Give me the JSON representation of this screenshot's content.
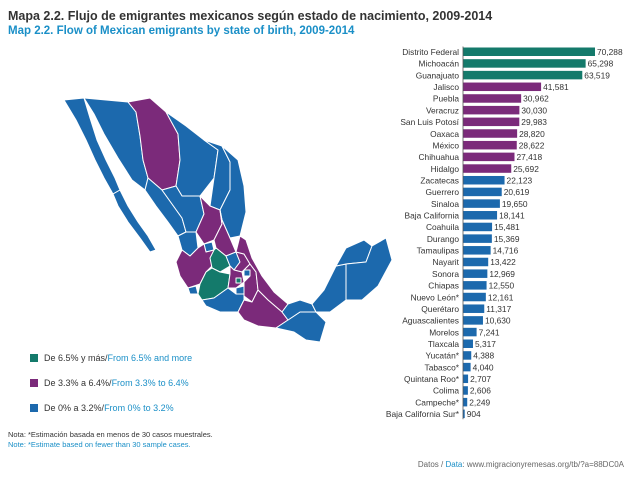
{
  "title_es": "Mapa 2.2. Flujo de emigrantes mexicanos  según  estado de nacimiento, 2009-2014",
  "title_en": "Map 2.2. Flow of Mexican emigrants by state of birth, 2009-2014",
  "legend": [
    {
      "label_es": "De 6.5% y más",
      "sep": " / ",
      "label_en": "From 6.5% and more",
      "color": "#147a6b"
    },
    {
      "label_es": "De 3.3% a 6.4%",
      "sep": " / ",
      "label_en": "From 3.3% to 6.4%",
      "color": "#7b2a7a"
    },
    {
      "label_es": "De 0% a 3.2%",
      "sep": " / ",
      "label_en": "From 0% to 3.2%",
      "color": "#1c69ad"
    }
  ],
  "note_es": "Nota: *Estimación basada en menos de 30 casos muestrales.",
  "note_en": "Note: *Estimate based on fewer than 30 sample cases.",
  "source_label_es": "Datos / ",
  "source_label_en": "Data",
  "source_url": ": www.migracionyremesas.org/tb/?a=88DC0A",
  "colors": {
    "high": "#147a6b",
    "mid": "#7b2a7a",
    "low": "#1c69ad",
    "text": "#333333",
    "accent": "#1a8fc7"
  },
  "chart_data": {
    "type": "bar",
    "orientation": "horizontal",
    "title": "Flow of Mexican emigrants by state of birth, 2009-2014",
    "categories": [
      "Distrito Federal",
      "Michoacán",
      "Guanajuato",
      "Jalisco",
      "Puebla",
      "Veracruz",
      "San Luis Potosí",
      "Oaxaca",
      "México",
      "Chihuahua",
      "Hidalgo",
      "Zacatecas",
      "Guerrero",
      "Sinaloa",
      "Baja California",
      "Coahuila",
      "Durango",
      "Tamaulipas",
      "Nayarit",
      "Sonora",
      "Chiapas",
      "Nuevo León*",
      "Querétaro",
      "Aguascalientes",
      "Morelos",
      "Tlaxcala",
      "Yucatán*",
      "Tabasco*",
      "Quintana Roo*",
      "Colima",
      "Campeche*",
      "Baja California Sur*"
    ],
    "values": [
      70288,
      65298,
      63519,
      41581,
      30962,
      30030,
      29983,
      28820,
      28622,
      27418,
      25692,
      22123,
      20619,
      19650,
      18141,
      15481,
      15369,
      14716,
      13422,
      12969,
      12550,
      12161,
      11317,
      10630,
      7241,
      5317,
      4388,
      4040,
      2707,
      2606,
      2249,
      904
    ],
    "value_labels": [
      "70,288",
      "65,298",
      "63,519",
      "41,581",
      "30,962",
      "30,030",
      "29,983",
      "28,820",
      "28,622",
      "27,418",
      "25,692",
      "22,123",
      "20,619",
      "19,650",
      "18,141",
      "15,481",
      "15,369",
      "14,716",
      "13,422",
      "12,969",
      "12,550",
      "12,161",
      "11,317",
      "10,630",
      "7,241",
      "5,317",
      "4,388",
      "4,040",
      "2,707",
      "2,606",
      "2,249",
      "904"
    ],
    "class": [
      "high",
      "high",
      "high",
      "mid",
      "mid",
      "mid",
      "mid",
      "mid",
      "mid",
      "mid",
      "mid",
      "low",
      "low",
      "low",
      "low",
      "low",
      "low",
      "low",
      "low",
      "low",
      "low",
      "low",
      "low",
      "low",
      "low",
      "low",
      "low",
      "low",
      "low",
      "low",
      "low",
      "low"
    ],
    "xlim": [
      0,
      70288
    ],
    "grid": false
  }
}
